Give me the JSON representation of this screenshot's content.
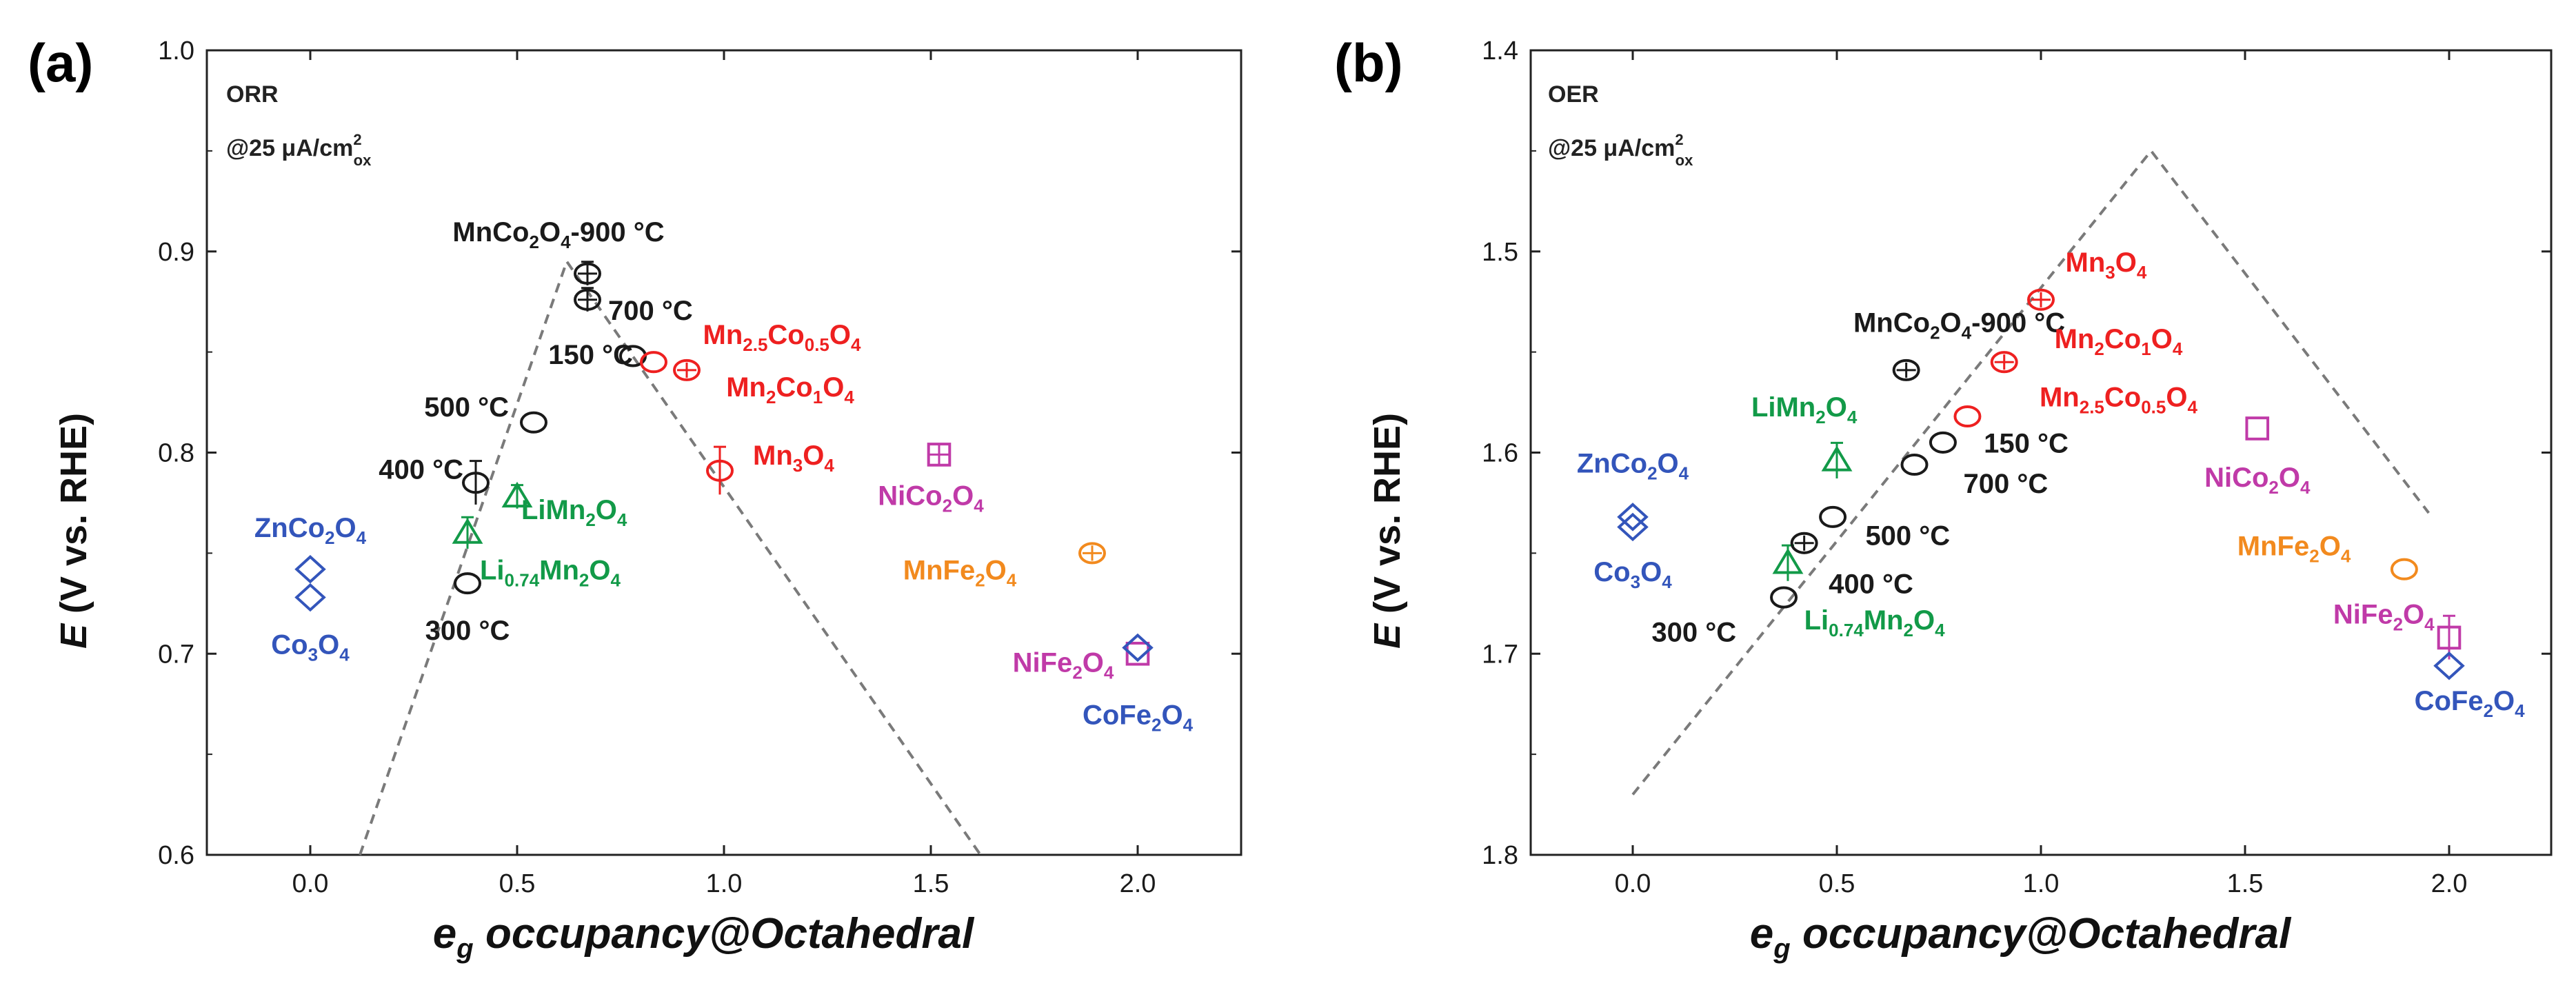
{
  "colors": {
    "black": "#1a1a1a",
    "red": "#ee2020",
    "blue": "#3355bb",
    "green": "#129a48",
    "magenta": "#c03aa8",
    "orange": "#f28a1e",
    "guide": "#7a7a7a"
  },
  "chart_data": [
    {
      "type": "scatter",
      "panel_label": "(a)",
      "title_line1": "ORR",
      "title_line2": "@25 μA/cm",
      "title_sup": "2",
      "title_sub": "ox",
      "xlabel_main": "e",
      "xlabel_sub": "g",
      "xlabel_rest": " occupancy@Octahedral",
      "ylabel_main": "E",
      "ylabel_rest": " (V vs. RHE)",
      "xlim": [
        -0.25,
        2.25
      ],
      "ylim": [
        0.6,
        1.0
      ],
      "y_inverted": false,
      "xticks": [
        0.0,
        0.5,
        1.0,
        1.5,
        2.0
      ],
      "xtick_labels": [
        "0.0",
        "0.5",
        "1.0",
        "1.5",
        "2.0"
      ],
      "yticks": [
        0.6,
        0.7,
        0.8,
        0.9,
        1.0
      ],
      "ytick_labels": [
        "0.6",
        "0.7",
        "0.8",
        "0.9",
        "1.0"
      ],
      "guide_line": [
        [
          0.12,
          0.6
        ],
        [
          0.62,
          0.895
        ],
        [
          1.62,
          0.6
        ]
      ],
      "points": [
        {
          "x": 0.0,
          "y": 0.742,
          "marker": "diamond",
          "color": "blue",
          "err": 0.0
        },
        {
          "x": 0.0,
          "y": 0.728,
          "marker": "diamond",
          "color": "blue",
          "err": 0.0
        },
        {
          "x": 0.38,
          "y": 0.735,
          "marker": "circle",
          "color": "black",
          "err": 0.0
        },
        {
          "x": 0.38,
          "y": 0.76,
          "marker": "triangle",
          "color": "green",
          "err": 0.006
        },
        {
          "x": 0.4,
          "y": 0.785,
          "marker": "circle",
          "color": "black",
          "err": 0.009
        },
        {
          "x": 0.5,
          "y": 0.778,
          "marker": "triangle",
          "color": "green",
          "err": 0.004
        },
        {
          "x": 0.54,
          "y": 0.815,
          "marker": "circle",
          "color": "black",
          "err": 0.0
        },
        {
          "x": 0.67,
          "y": 0.889,
          "marker": "circle-cross",
          "color": "black",
          "err": 0.004
        },
        {
          "x": 0.67,
          "y": 0.876,
          "marker": "circle-cross",
          "color": "black",
          "err": 0.004
        },
        {
          "x": 0.78,
          "y": 0.848,
          "marker": "circle",
          "color": "black",
          "err": 0.0
        },
        {
          "x": 0.83,
          "y": 0.845,
          "marker": "circle",
          "color": "red",
          "err": 0.0
        },
        {
          "x": 0.91,
          "y": 0.841,
          "marker": "circle-cross",
          "color": "red",
          "err": 0.0
        },
        {
          "x": 0.99,
          "y": 0.791,
          "marker": "circle",
          "color": "red",
          "err": 0.01
        },
        {
          "x": 1.52,
          "y": 0.799,
          "marker": "square-cross",
          "color": "magenta",
          "err": 0.0
        },
        {
          "x": 1.89,
          "y": 0.75,
          "marker": "circle-cross",
          "color": "orange",
          "err": 0.0
        },
        {
          "x": 2.0,
          "y": 0.7,
          "marker": "square",
          "color": "magenta",
          "err": 0.0
        },
        {
          "x": 2.0,
          "y": 0.703,
          "marker": "diamond",
          "color": "blue",
          "err": 0.0
        }
      ],
      "labels": [
        {
          "x": 0.0,
          "y": 0.758,
          "anchor": "middle",
          "color": "blue",
          "text": "ZnCo",
          "sub": "2",
          "text2": "O",
          "sub2": "4"
        },
        {
          "x": 0.0,
          "y": 0.7,
          "anchor": "middle",
          "color": "blue",
          "text": "Co",
          "sub": "3",
          "text2": "O",
          "sub2": "4"
        },
        {
          "x": 0.38,
          "y": 0.707,
          "anchor": "middle",
          "color": "black",
          "text": "300 °C"
        },
        {
          "x": 0.37,
          "y": 0.787,
          "anchor": "end",
          "color": "black",
          "text": "400 °C"
        },
        {
          "x": 0.48,
          "y": 0.818,
          "anchor": "end",
          "color": "black",
          "text": "500 °C"
        },
        {
          "x": 0.51,
          "y": 0.767,
          "anchor": "start",
          "color": "green",
          "text": "LiMn",
          "sub": "2",
          "text2": "O",
          "sub2": "4"
        },
        {
          "x": 0.41,
          "y": 0.737,
          "anchor": "start",
          "color": "green",
          "text": "Li",
          "sub": "0.74",
          "text2": "Mn",
          "sub2": "2",
          "text3": "O",
          "sub3": "4"
        },
        {
          "x": 0.6,
          "y": 0.905,
          "anchor": "middle",
          "color": "black",
          "text": "MnCo",
          "sub": "2",
          "text2": "O",
          "sub2": "4",
          "text3": "-900 °C"
        },
        {
          "x": 0.72,
          "y": 0.866,
          "anchor": "start",
          "color": "black",
          "text": "700 °C"
        },
        {
          "x": 0.78,
          "y": 0.844,
          "anchor": "end",
          "color": "black",
          "text": "150 °C"
        },
        {
          "x": 1.14,
          "y": 0.854,
          "anchor": "middle",
          "color": "red",
          "text": "Mn",
          "sub": "2.5",
          "text2": "Co",
          "sub2": "0.5",
          "text3": "O",
          "sub3": "4"
        },
        {
          "x": 1.16,
          "y": 0.828,
          "anchor": "middle",
          "color": "red",
          "text": "Mn",
          "sub": "2",
          "text2": "Co",
          "sub2": "1",
          "text3": "O",
          "sub3": "4"
        },
        {
          "x": 1.07,
          "y": 0.794,
          "anchor": "start",
          "color": "red",
          "text": "Mn",
          "sub": "3",
          "text2": "O",
          "sub2": "4"
        },
        {
          "x": 1.5,
          "y": 0.774,
          "anchor": "middle",
          "color": "magenta",
          "text": "NiCo",
          "sub": "2",
          "text2": "O",
          "sub2": "4"
        },
        {
          "x": 1.57,
          "y": 0.737,
          "anchor": "middle",
          "color": "orange",
          "text": "MnFe",
          "sub": "2",
          "text2": "O",
          "sub2": "4"
        },
        {
          "x": 1.82,
          "y": 0.691,
          "anchor": "middle",
          "color": "magenta",
          "text": "NiFe",
          "sub": "2",
          "text2": "O",
          "sub2": "4"
        },
        {
          "x": 2.0,
          "y": 0.665,
          "anchor": "middle",
          "color": "blue",
          "text": "CoFe",
          "sub": "2",
          "text2": "O",
          "sub2": "4"
        }
      ]
    },
    {
      "type": "scatter",
      "panel_label": "(b)",
      "title_line1": "OER",
      "title_line2": "@25 μA/cm",
      "title_sup": "2",
      "title_sub": "ox",
      "xlabel_main": "e",
      "xlabel_sub": "g",
      "xlabel_rest": " occupancy@Octahedral",
      "ylabel_main": "E",
      "ylabel_rest": " (V vs. RHE)",
      "xlim": [
        -0.25,
        2.25
      ],
      "ylim": [
        1.4,
        1.8
      ],
      "y_inverted": true,
      "xticks": [
        0.0,
        0.5,
        1.0,
        1.5,
        2.0
      ],
      "xtick_labels": [
        "0.0",
        "0.5",
        "1.0",
        "1.5",
        "2.0"
      ],
      "yticks": [
        1.4,
        1.5,
        1.6,
        1.7,
        1.8
      ],
      "ytick_labels": [
        "1.4",
        "1.5",
        "1.6",
        "1.7",
        "1.8"
      ],
      "guide_line": [
        [
          0.0,
          1.77
        ],
        [
          1.27,
          1.45
        ],
        [
          1.95,
          1.63
        ]
      ],
      "points": [
        {
          "x": 0.0,
          "y": 1.632,
          "marker": "diamond",
          "color": "blue",
          "err": 0.0
        },
        {
          "x": 0.0,
          "y": 1.637,
          "marker": "diamond",
          "color": "blue",
          "err": 0.0
        },
        {
          "x": 0.37,
          "y": 1.672,
          "marker": "circle",
          "color": "black",
          "err": 0.0
        },
        {
          "x": 0.38,
          "y": 1.655,
          "marker": "triangle",
          "color": "green",
          "err": 0.007
        },
        {
          "x": 0.42,
          "y": 1.645,
          "marker": "circle-cross",
          "color": "black",
          "err": 0.0
        },
        {
          "x": 0.49,
          "y": 1.632,
          "marker": "circle",
          "color": "black",
          "err": 0.0
        },
        {
          "x": 0.5,
          "y": 1.604,
          "marker": "triangle",
          "color": "green",
          "err": 0.007
        },
        {
          "x": 0.67,
          "y": 1.559,
          "marker": "circle-cross",
          "color": "black",
          "err": 0.0
        },
        {
          "x": 0.69,
          "y": 1.606,
          "marker": "circle",
          "color": "black",
          "err": 0.0
        },
        {
          "x": 0.76,
          "y": 1.595,
          "marker": "circle",
          "color": "black",
          "err": 0.0
        },
        {
          "x": 0.82,
          "y": 1.582,
          "marker": "circle",
          "color": "red",
          "err": 0.0
        },
        {
          "x": 0.91,
          "y": 1.555,
          "marker": "circle-cross",
          "color": "red",
          "err": 0.0
        },
        {
          "x": 1.0,
          "y": 1.524,
          "marker": "circle-cross",
          "color": "red",
          "err": 0.0
        },
        {
          "x": 1.53,
          "y": 1.588,
          "marker": "square",
          "color": "magenta",
          "err": 0.0
        },
        {
          "x": 1.89,
          "y": 1.658,
          "marker": "circle",
          "color": "orange",
          "err": 0.0
        },
        {
          "x": 2.0,
          "y": 1.692,
          "marker": "square",
          "color": "magenta",
          "err": 0.009
        },
        {
          "x": 2.0,
          "y": 1.706,
          "marker": "diamond",
          "color": "blue",
          "err": 0.0
        }
      ],
      "labels": [
        {
          "x": 0.0,
          "y": 1.61,
          "anchor": "middle",
          "color": "blue",
          "text": "ZnCo",
          "sub": "2",
          "text2": "O",
          "sub2": "4"
        },
        {
          "x": 0.0,
          "y": 1.664,
          "anchor": "middle",
          "color": "blue",
          "text": "Co",
          "sub": "3",
          "text2": "O",
          "sub2": "4"
        },
        {
          "x": 0.15,
          "y": 1.694,
          "anchor": "middle",
          "color": "black",
          "text": "300 °C"
        },
        {
          "x": 0.48,
          "y": 1.67,
          "anchor": "start",
          "color": "black",
          "text": "400 °C"
        },
        {
          "x": 0.57,
          "y": 1.646,
          "anchor": "start",
          "color": "black",
          "text": "500 °C"
        },
        {
          "x": 0.42,
          "y": 1.688,
          "anchor": "start",
          "color": "green",
          "text": "Li",
          "sub": "0.74",
          "text2": "Mn",
          "sub2": "2",
          "text3": "O",
          "sub3": "4"
        },
        {
          "x": 0.42,
          "y": 1.582,
          "anchor": "middle",
          "color": "green",
          "text": "LiMn",
          "sub": "2",
          "text2": "O",
          "sub2": "4"
        },
        {
          "x": 0.8,
          "y": 1.54,
          "anchor": "middle",
          "color": "black",
          "text": "MnCo",
          "sub": "2",
          "text2": "O",
          "sub2": "4",
          "text3": "-900 °C"
        },
        {
          "x": 0.81,
          "y": 1.62,
          "anchor": "start",
          "color": "black",
          "text": "700 °C"
        },
        {
          "x": 0.86,
          "y": 1.6,
          "anchor": "start",
          "color": "black",
          "text": "150 °C"
        },
        {
          "x": 1.06,
          "y": 1.51,
          "anchor": "start",
          "color": "red",
          "text": "Mn",
          "sub": "3",
          "text2": "O",
          "sub2": "4"
        },
        {
          "x": 1.19,
          "y": 1.548,
          "anchor": "middle",
          "color": "red",
          "text": "Mn",
          "sub": "2",
          "text2": "Co",
          "sub2": "1",
          "text3": "O",
          "sub3": "4"
        },
        {
          "x": 1.19,
          "y": 1.577,
          "anchor": "middle",
          "color": "red",
          "text": "Mn",
          "sub": "2.5",
          "text2": "Co",
          "sub2": "0.5",
          "text3": "O",
          "sub3": "4"
        },
        {
          "x": 1.53,
          "y": 1.617,
          "anchor": "middle",
          "color": "magenta",
          "text": "NiCo",
          "sub": "2",
          "text2": "O",
          "sub2": "4"
        },
        {
          "x": 1.62,
          "y": 1.651,
          "anchor": "middle",
          "color": "orange",
          "text": "MnFe",
          "sub": "2",
          "text2": "O",
          "sub2": "4"
        },
        {
          "x": 1.84,
          "y": 1.685,
          "anchor": "middle",
          "color": "magenta",
          "text": "NiFe",
          "sub": "2",
          "text2": "O",
          "sub2": "4"
        },
        {
          "x": 2.05,
          "y": 1.728,
          "anchor": "middle",
          "color": "blue",
          "text": "CoFe",
          "sub": "2",
          "text2": "O",
          "sub2": "4"
        }
      ]
    }
  ]
}
